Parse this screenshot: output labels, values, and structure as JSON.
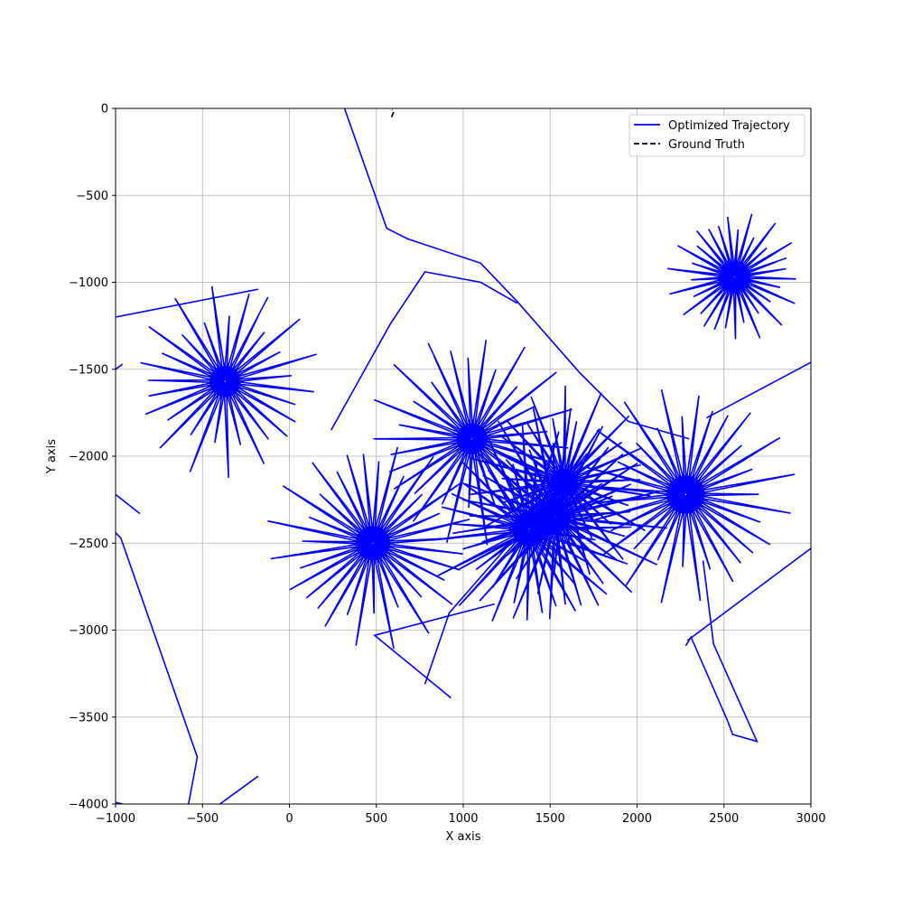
{
  "chart_data": {
    "type": "line",
    "title": "",
    "xlabel": "X axis",
    "ylabel": "Y axis",
    "xlim": [
      -1000,
      3000
    ],
    "ylim": [
      -4000,
      0
    ],
    "xticks": [
      -1000,
      -500,
      0,
      500,
      1000,
      1500,
      2000,
      2500,
      3000
    ],
    "yticks": [
      0,
      -500,
      -1000,
      -1500,
      -2000,
      -2500,
      -3000,
      -3500,
      -4000
    ],
    "xtick_labels": [
      "−1000",
      "−500",
      "0",
      "500",
      "1000",
      "1500",
      "2000",
      "2500",
      "3000"
    ],
    "ytick_labels": [
      "0",
      "−500",
      "−1000",
      "−1500",
      "−2000",
      "−2500",
      "−3000",
      "−3500",
      "−4000"
    ],
    "grid": true,
    "legend_position": "top-right",
    "series": [
      {
        "name": "Optimized Trajectory",
        "color": "#0000ff",
        "style": "solid",
        "stars": [
          {
            "cx": 2560,
            "cy": -970,
            "r_in": 90,
            "r_out": 390,
            "n": 33,
            "phase": 0.35
          },
          {
            "cx": -370,
            "cy": -1570,
            "r_in": 90,
            "r_out": 560,
            "n": 31,
            "phase": 1.1
          },
          {
            "cx": 480,
            "cy": -2500,
            "r_in": 100,
            "r_out": 620,
            "n": 35,
            "phase": 0.6
          },
          {
            "cx": 1050,
            "cy": -1900,
            "r_in": 90,
            "r_out": 620,
            "n": 33,
            "phase": 2.0
          },
          {
            "cx": 1380,
            "cy": -2420,
            "r_in": 100,
            "r_out": 600,
            "n": 35,
            "phase": 0.2
          },
          {
            "cx": 1530,
            "cy": -2350,
            "r_in": 90,
            "r_out": 650,
            "n": 37,
            "phase": 1.6
          },
          {
            "cx": 1580,
            "cy": -2150,
            "r_in": 80,
            "r_out": 560,
            "n": 33,
            "phase": 2.7
          },
          {
            "cx": 2280,
            "cy": -2220,
            "r_in": 110,
            "r_out": 640,
            "n": 35,
            "phase": 0.9
          }
        ],
        "connectors": [
          [
            [
              310,
              20
            ],
            [
              560,
              -690
            ],
            [
              680,
              -750
            ],
            [
              1100,
              -890
            ],
            [
              1310,
              -1110
            ],
            [
              1670,
              -1520
            ],
            [
              1950,
              -1800
            ],
            [
              2300,
              -1900
            ]
          ],
          [
            [
              240,
              -1850
            ],
            [
              580,
              -1240
            ],
            [
              780,
              -940
            ],
            [
              1100,
              -1000
            ],
            [
              1310,
              -1120
            ]
          ],
          [
            [
              780,
              -3310
            ],
            [
              920,
              -2900
            ],
            [
              1480,
              -2260
            ]
          ],
          [
            [
              930,
              -3390
            ],
            [
              490,
              -3030
            ],
            [
              1180,
              -2850
            ]
          ],
          [
            [
              -1000,
              -2440
            ],
            [
              -970,
              -2470
            ],
            [
              -530,
              -3730
            ],
            [
              -580,
              -4000
            ]
          ],
          [
            [
              -400,
              -4000
            ],
            [
              -180,
              -3840
            ]
          ],
          [
            [
              -1000,
              -3990
            ],
            [
              -960,
              -4000
            ]
          ],
          [
            [
              2280,
              -3090
            ],
            [
              2310,
              -3040
            ],
            [
              2520,
              -3520
            ],
            [
              2550,
              -3600
            ],
            [
              2690,
              -3640
            ],
            [
              2440,
              -3080
            ],
            [
              2380,
              -2600
            ]
          ],
          [
            [
              2290,
              -3060
            ],
            [
              3000,
              -2530
            ]
          ],
          [
            [
              2400,
              -1780
            ],
            [
              3000,
              -1460
            ]
          ],
          [
            [
              -1000,
              -2220
            ],
            [
              -860,
              -2330
            ]
          ],
          [
            [
              -1000,
              -1200
            ],
            [
              -180,
              -1040
            ]
          ],
          [
            [
              -1000,
              -1500
            ],
            [
              -960,
              -1470
            ]
          ]
        ]
      },
      {
        "name": "Ground Truth",
        "color": "#000000",
        "style": "dashed",
        "x": [
          588,
          594,
          600,
          594,
          590
        ],
        "y": [
          -50,
          -35,
          -20,
          -10,
          -5
        ]
      }
    ]
  }
}
